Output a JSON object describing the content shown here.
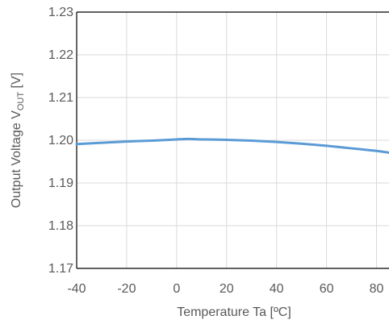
{
  "chart_data": {
    "type": "line",
    "title": "",
    "xlabel": "Temperature Ta [ºC]",
    "ylabel": {
      "prefix": "Output Voltage V",
      "subscript": "OUT",
      "suffix": " [V]"
    },
    "xlim": [
      -40,
      85
    ],
    "ylim": [
      1.17,
      1.23
    ],
    "x_ticks": [
      -40,
      -20,
      0,
      20,
      40,
      60,
      80
    ],
    "x_tick_labels": [
      "-40",
      "-20",
      "0",
      "20",
      "40",
      "60",
      "80"
    ],
    "y_ticks": [
      1.17,
      1.18,
      1.19,
      1.2,
      1.21,
      1.22,
      1.23
    ],
    "y_tick_labels": [
      "1.17",
      "1.18",
      "1.19",
      "1.20",
      "1.21",
      "1.22",
      "1.23"
    ],
    "grid": true,
    "legend": "none",
    "colors": {
      "series": "#5b9bd5",
      "grid": "#d9d9d9",
      "axis": "#000000",
      "text": "#595959"
    },
    "series": [
      {
        "x": [
          -40,
          -30,
          -20,
          -10,
          0,
          5,
          10,
          20,
          30,
          40,
          50,
          60,
          70,
          80,
          85
        ],
        "values": [
          1.1991,
          1.1994,
          1.1997,
          1.1999,
          1.2002,
          1.2003,
          1.2002,
          1.2001,
          1.1999,
          1.1996,
          1.1992,
          1.1987,
          1.1981,
          1.1975,
          1.1971
        ]
      }
    ]
  }
}
